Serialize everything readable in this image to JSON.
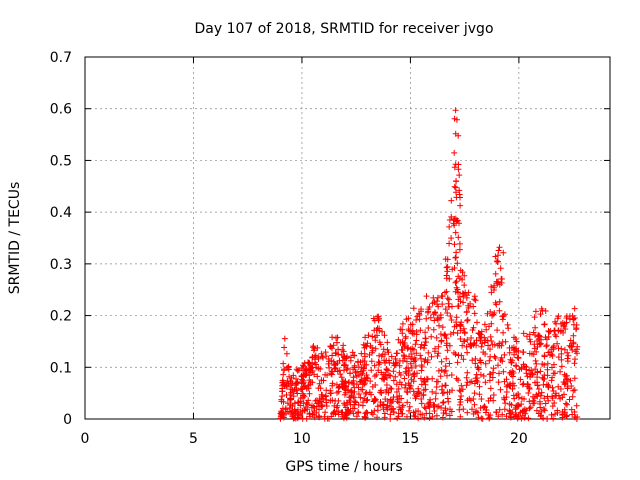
{
  "chart_data": {
    "type": "scatter",
    "title": "Day 107 of 2018, SRMTID for receiver jvgo",
    "xlabel": "GPS time / hours",
    "ylabel": "SRMTID / TECUs",
    "xlim": [
      0,
      24.2
    ],
    "ylim": [
      0,
      0.7
    ],
    "xticks": [
      "0",
      "5",
      "10",
      "15",
      "20"
    ],
    "yticks": [
      "0",
      "0.1",
      "0.2",
      "0.3",
      "0.4",
      "0.5",
      "0.6",
      "0.7"
    ],
    "grid": true,
    "marker": "+",
    "color": "#ff0000",
    "series": [
      {
        "name": "SRMTID",
        "segments": [
          {
            "t0": 9.0,
            "t1": 22.7,
            "n": 1500
          },
          {
            "t0": 17.0,
            "t1": 17.3,
            "n": 40,
            "spike": true
          }
        ],
        "envelope": [
          [
            9.0,
            0.0
          ],
          [
            9.2,
            0.17
          ],
          [
            9.5,
            0.09
          ],
          [
            10.0,
            0.11
          ],
          [
            10.5,
            0.16
          ],
          [
            11.0,
            0.14
          ],
          [
            11.5,
            0.17
          ],
          [
            12.0,
            0.15
          ],
          [
            12.5,
            0.14
          ],
          [
            13.0,
            0.17
          ],
          [
            13.5,
            0.22
          ],
          [
            14.0,
            0.15
          ],
          [
            14.5,
            0.19
          ],
          [
            15.0,
            0.22
          ],
          [
            15.5,
            0.23
          ],
          [
            16.0,
            0.27
          ],
          [
            16.5,
            0.25
          ],
          [
            17.0,
            0.62
          ],
          [
            17.3,
            0.36
          ],
          [
            17.6,
            0.27
          ],
          [
            18.0,
            0.21
          ],
          [
            18.5,
            0.2
          ],
          [
            19.0,
            0.35
          ],
          [
            19.5,
            0.18
          ],
          [
            20.0,
            0.17
          ],
          [
            20.5,
            0.2
          ],
          [
            21.0,
            0.23
          ],
          [
            21.5,
            0.21
          ],
          [
            22.0,
            0.2
          ],
          [
            22.5,
            0.24
          ],
          [
            22.7,
            0.2
          ]
        ]
      }
    ]
  }
}
